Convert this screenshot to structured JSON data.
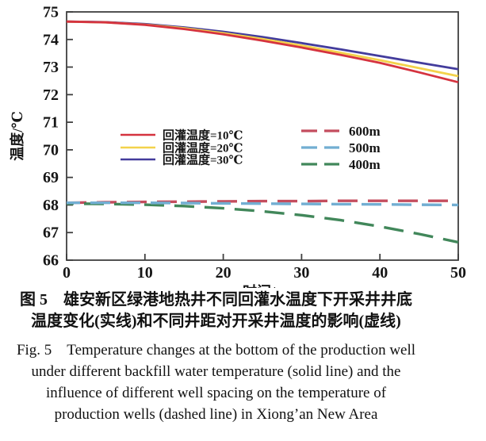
{
  "figure": {
    "caption_zh_line1": "图 5　雄安新区绿港地热井不同回灌水温度下开采井井底",
    "caption_zh_line2": "温度变化(实线)和不同井距对开采井温度的影响(虚线)",
    "caption_en_line1": "Fig. 5　Temperature changes at the bottom of the production well",
    "caption_en_line2": "under different backfill water temperature (solid line) and the",
    "caption_en_line3": "influence of different well spacing on the temperature of",
    "caption_en_line4": "production wells (dashed line) in Xiong’an New Area"
  },
  "chart_data": {
    "type": "line",
    "title": "",
    "xlabel": "时间/a",
    "ylabel": "温度/℃",
    "xlim": [
      0,
      50
    ],
    "ylim": [
      66,
      75
    ],
    "xticks": [
      0,
      10,
      20,
      30,
      40,
      50
    ],
    "yticks": [
      66,
      67,
      68,
      69,
      70,
      71,
      72,
      73,
      74,
      75
    ],
    "grid": false,
    "legend_position": "inside-middle",
    "x": [
      0,
      5,
      10,
      15,
      20,
      25,
      30,
      35,
      40,
      45,
      50
    ],
    "series": [
      {
        "name": "回灌温度=10℃",
        "group": "solid",
        "color": "#d5333f",
        "values": [
          74.65,
          74.62,
          74.53,
          74.38,
          74.19,
          73.96,
          73.71,
          73.44,
          73.15,
          72.81,
          72.45
        ]
      },
      {
        "name": "回灌温度=20℃",
        "group": "solid",
        "color": "#f3d24b",
        "values": [
          74.65,
          74.62,
          74.54,
          74.41,
          74.23,
          74.02,
          73.78,
          73.52,
          73.25,
          72.96,
          72.67
        ]
      },
      {
        "name": "回灌温度=30℃",
        "group": "solid",
        "color": "#433c9c",
        "values": [
          74.65,
          74.63,
          74.56,
          74.44,
          74.28,
          74.09,
          73.87,
          73.64,
          73.4,
          73.16,
          72.92
        ]
      },
      {
        "name": "600m",
        "group": "dashed",
        "color": "#c44d5e",
        "values": [
          68.08,
          68.1,
          68.11,
          68.12,
          68.13,
          68.14,
          68.14,
          68.15,
          68.15,
          68.15,
          68.15
        ]
      },
      {
        "name": "500m",
        "group": "dashed",
        "color": "#72aed2",
        "values": [
          68.08,
          68.08,
          68.08,
          68.07,
          68.06,
          68.05,
          68.04,
          68.03,
          68.02,
          68.01,
          68.0
        ]
      },
      {
        "name": "400m",
        "group": "dashed",
        "color": "#41875a",
        "values": [
          68.05,
          68.04,
          68.01,
          67.96,
          67.88,
          67.77,
          67.63,
          67.45,
          67.22,
          66.95,
          66.65
        ]
      }
    ],
    "axis_color": "#3f3f3f"
  }
}
